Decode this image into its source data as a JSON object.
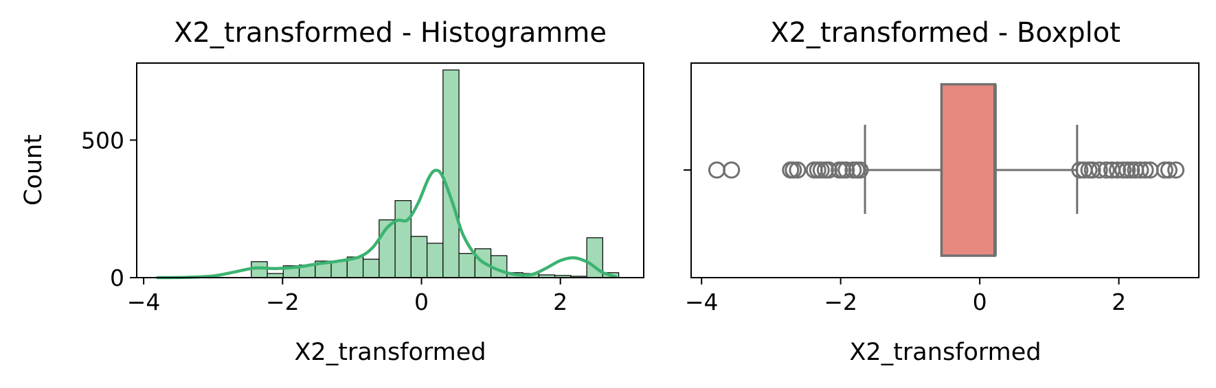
{
  "chart_data": [
    {
      "type": "histogram",
      "title": "X2_transformed - Histogramme",
      "xlabel": "X2_transformed",
      "ylabel": "Count",
      "xlim": [
        -4.1,
        3.2
      ],
      "ylim": [
        0,
        780
      ],
      "xticks": [
        -4,
        -2,
        0,
        2
      ],
      "xtick_labels": [
        "−4",
        "−2",
        "0",
        "2"
      ],
      "yticks": [
        0,
        500
      ],
      "ytick_labels": [
        "0",
        "500"
      ],
      "bar_color": "#a1dab4",
      "kde_color": "#3cb371",
      "bins": [
        {
          "x0": -2.45,
          "x1": -2.22,
          "count": 58
        },
        {
          "x0": -2.22,
          "x1": -1.99,
          "count": 15
        },
        {
          "x0": -1.99,
          "x1": -1.76,
          "count": 43
        },
        {
          "x0": -1.76,
          "x1": -1.53,
          "count": 46
        },
        {
          "x0": -1.53,
          "x1": -1.3,
          "count": 60
        },
        {
          "x0": -1.3,
          "x1": -1.07,
          "count": 60
        },
        {
          "x0": -1.07,
          "x1": -0.84,
          "count": 75
        },
        {
          "x0": -0.84,
          "x1": -0.61,
          "count": 67
        },
        {
          "x0": -0.61,
          "x1": -0.38,
          "count": 210
        },
        {
          "x0": -0.38,
          "x1": -0.15,
          "count": 280
        },
        {
          "x0": -0.15,
          "x1": 0.08,
          "count": 150
        },
        {
          "x0": 0.08,
          "x1": 0.31,
          "count": 125
        },
        {
          "x0": 0.31,
          "x1": 0.54,
          "count": 755
        },
        {
          "x0": 0.54,
          "x1": 0.77,
          "count": 88
        },
        {
          "x0": 0.77,
          "x1": 1.0,
          "count": 105
        },
        {
          "x0": 1.0,
          "x1": 1.23,
          "count": 80
        },
        {
          "x0": 1.23,
          "x1": 1.46,
          "count": 18
        },
        {
          "x0": 1.46,
          "x1": 1.69,
          "count": 15
        },
        {
          "x0": 1.69,
          "x1": 1.92,
          "count": 10
        },
        {
          "x0": 1.92,
          "x1": 2.15,
          "count": 8
        },
        {
          "x0": 2.15,
          "x1": 2.38,
          "count": 5
        },
        {
          "x0": 2.38,
          "x1": 2.61,
          "count": 145
        },
        {
          "x0": 2.61,
          "x1": 2.84,
          "count": 18
        }
      ],
      "kde": {
        "x": [
          -3.8,
          -3.4,
          -3.0,
          -2.7,
          -2.4,
          -2.1,
          -1.8,
          -1.5,
          -1.2,
          -0.9,
          -0.7,
          -0.5,
          -0.35,
          -0.2,
          -0.05,
          0.1,
          0.2,
          0.3,
          0.45,
          0.6,
          0.8,
          1.0,
          1.2,
          1.4,
          1.6,
          1.8,
          2.0,
          2.2,
          2.4,
          2.6,
          2.8
        ],
        "y": [
          0,
          1,
          6,
          20,
          35,
          33,
          38,
          50,
          60,
          75,
          110,
          180,
          208,
          210,
          270,
          360,
          390,
          370,
          270,
          155,
          75,
          40,
          20,
          10,
          12,
          35,
          62,
          72,
          55,
          20,
          3
        ]
      }
    },
    {
      "type": "boxplot",
      "title": "X2_transformed - Boxplot",
      "xlabel": "X2_transformed",
      "xlim": [
        -4.15,
        3.15
      ],
      "xticks": [
        -4,
        -2,
        0,
        2
      ],
      "xtick_labels": [
        "−4",
        "−2",
        "0",
        "2"
      ],
      "box_color": "#e8897f",
      "line_color": "#707070",
      "whisker_low": -1.65,
      "q1": -0.55,
      "median": 0.22,
      "q3": 0.22,
      "whisker_high": 1.4,
      "outliers": [
        -3.78,
        -3.57,
        -2.72,
        -2.68,
        -2.62,
        -2.38,
        -2.33,
        -2.28,
        -2.22,
        -2.17,
        -2.02,
        -1.97,
        -1.92,
        -1.82,
        -1.77,
        -1.72,
        1.44,
        1.5,
        1.57,
        1.62,
        1.72,
        1.82,
        1.9,
        1.98,
        2.06,
        2.12,
        2.18,
        2.24,
        2.31,
        2.38,
        2.45,
        2.66,
        2.72,
        2.82
      ]
    }
  ]
}
